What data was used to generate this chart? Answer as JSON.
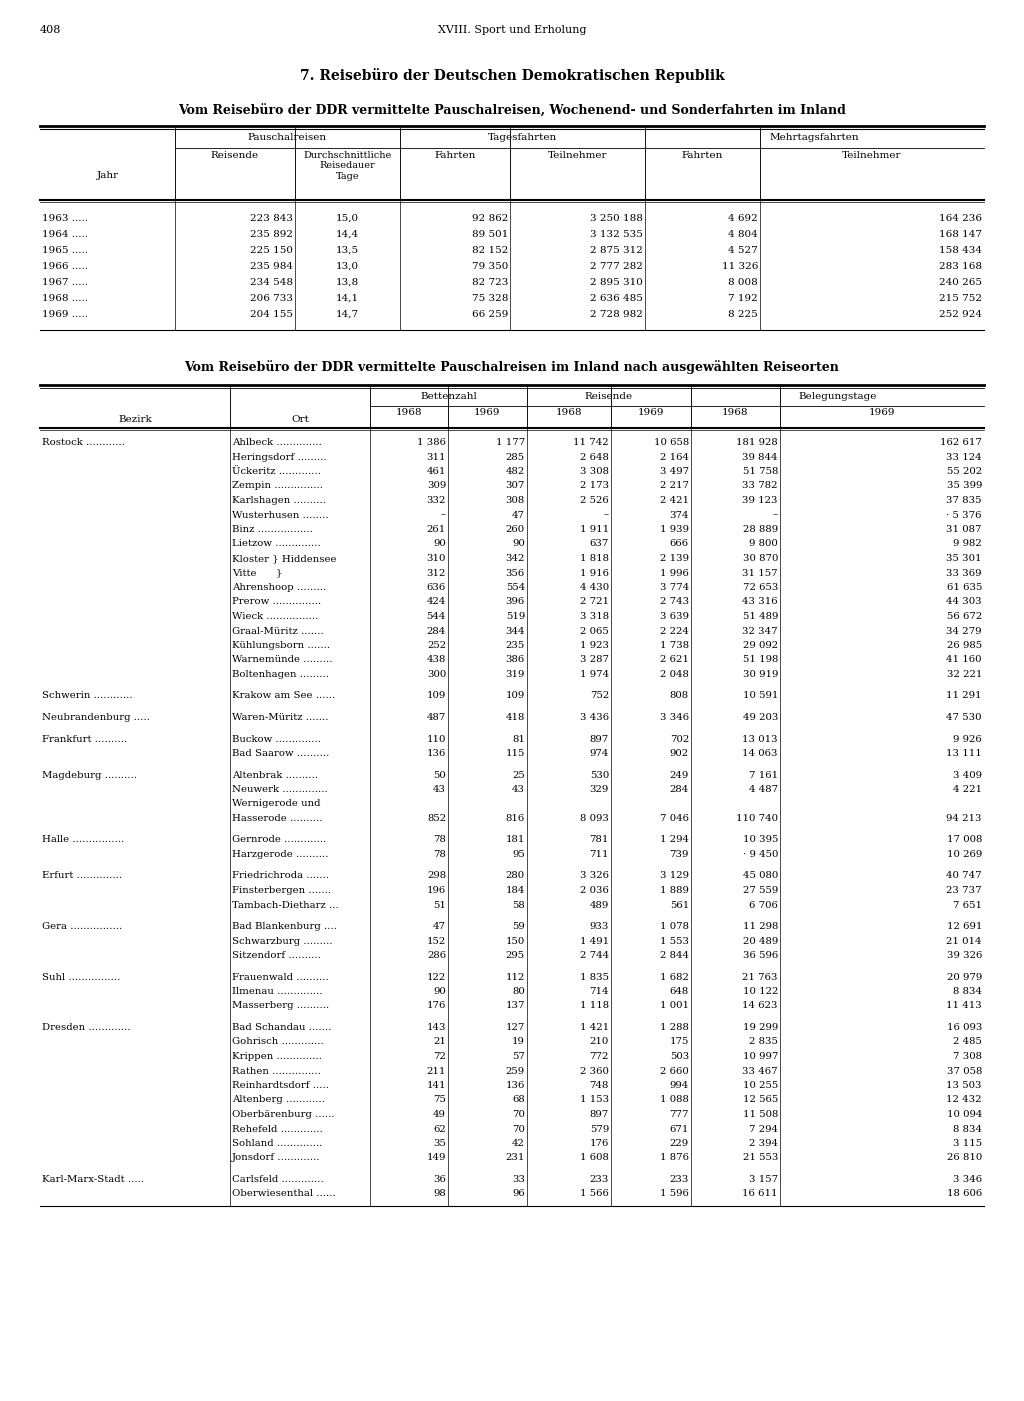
{
  "page_num": "408",
  "header": "XVIII. Sport und Erholung",
  "section_title": "7. Reisebüro der Deutschen Demokratischen Republik",
  "table1_subtitle": "Vom Reisebüro der DDR vermittelte Pauschalreisen, Wochenend- und Sonderfahrten im Inland",
  "table1_data": [
    [
      "1963 .....",
      "223 843",
      "15,0",
      "92 862",
      "3 250 188",
      "4 692",
      "164 236"
    ],
    [
      "1964 .....",
      "235 892",
      "14,4",
      "89 501",
      "3 132 535",
      "4 804",
      "168 147"
    ],
    [
      "1965 .....",
      "225 150",
      "13,5",
      "82 152",
      "2 875 312",
      "4 527",
      "158 434"
    ],
    [
      "1966 .....",
      "235 984",
      "13,0",
      "79 350",
      "2 777 282",
      "11 326",
      "283 168"
    ],
    [
      "1967 .....",
      "234 548",
      "13,8",
      "82 723",
      "2 895 310",
      "8 008",
      "240 265"
    ],
    [
      "1968 .....",
      "206 733",
      "14,1",
      "75 328",
      "2 636 485",
      "7 192",
      "215 752"
    ],
    [
      "1969 .....",
      "204 155",
      "14,7",
      "66 259",
      "2 728 982",
      "8 225",
      "252 924"
    ]
  ],
  "table2_subtitle": "Vom Reisebüro der DDR vermittelte Pauschalreisen im Inland nach ausgewählten Reiseorten",
  "table2_data": [
    [
      "Rostock ............",
      "Ahlbeck ..............",
      "1 386",
      "1 177",
      "11 742",
      "10 658",
      "181 928",
      "162 617"
    ],
    [
      "",
      "Heringsdorf .........",
      "311",
      "285",
      "2 648",
      "2 164",
      "39 844",
      "33 124"
    ],
    [
      "",
      "Ückeritz .............",
      "461",
      "482",
      "3 308",
      "3 497",
      "51 758",
      "55 202"
    ],
    [
      "",
      "Zempin ...............",
      "309",
      "307",
      "2 173",
      "2 217",
      "33 782",
      "35 399"
    ],
    [
      "",
      "Karlshagen ..........",
      "332",
      "308",
      "2 526",
      "2 421",
      "39 123",
      "37 835"
    ],
    [
      "",
      "Wusterhusen ........",
      "–",
      "47",
      "–",
      "374",
      "–",
      "· 5 376"
    ],
    [
      "",
      "Binz .................",
      "261",
      "260",
      "1 911",
      "1 939",
      "28 889",
      "31 087"
    ],
    [
      "",
      "Lietzow ..............",
      "90",
      "90",
      "637",
      "666",
      "9 800",
      "9 982"
    ],
    [
      "",
      "Kloster } Hiddensee",
      "310",
      "342",
      "1 818",
      "2 139",
      "30 870",
      "35 301"
    ],
    [
      "",
      "Vitte      }",
      "312",
      "356",
      "1 916",
      "1 996",
      "31 157",
      "33 369"
    ],
    [
      "",
      "Ahrenshoop .........",
      "636",
      "554",
      "4 430",
      "3 774",
      "72 653",
      "61 635"
    ],
    [
      "",
      "Prerow ...............",
      "424",
      "396",
      "2 721",
      "2 743",
      "43 316",
      "44 303"
    ],
    [
      "",
      "Wieck ................",
      "544",
      "519",
      "3 318",
      "3 639",
      "51 489",
      "56 672"
    ],
    [
      "",
      "Graal-Müritz .......",
      "284",
      "344",
      "2 065",
      "2 224",
      "32 347",
      "34 279"
    ],
    [
      "",
      "Kühlungsborn .......",
      "252",
      "235",
      "1 923",
      "1 738",
      "29 092",
      "26 985"
    ],
    [
      "",
      "Warnemünde .........",
      "438",
      "386",
      "3 287",
      "2 621",
      "51 198",
      "41 160"
    ],
    [
      "",
      "Boltenhagen .........",
      "300",
      "319",
      "1 974",
      "2 048",
      "30 919",
      "32 221"
    ],
    [
      "Schwerin ............",
      "Krakow am See ......",
      "109",
      "109",
      "752",
      "808",
      "10 591",
      "11 291"
    ],
    [
      "Neubrandenburg .....",
      "Waren-Müritz .......",
      "487",
      "418",
      "3 436",
      "3 346",
      "49 203",
      "47 530"
    ],
    [
      "Frankfurt ..........",
      "Buckow ..............",
      "110",
      "81",
      "897",
      "702",
      "13 013",
      "9 926"
    ],
    [
      "",
      "Bad Saarow ..........",
      "136",
      "115",
      "974",
      "902",
      "14 063",
      "13 111"
    ],
    [
      "Magdeburg ..........",
      "Altenbrak ..........",
      "50",
      "25",
      "530",
      "249",
      "7 161",
      "3 409"
    ],
    [
      "",
      "Neuwerk ..............",
      "43",
      "43",
      "329",
      "284",
      "4 487",
      "4 221"
    ],
    [
      "",
      "Wernigerode und",
      "",
      "",
      "",
      "",
      "",
      ""
    ],
    [
      "",
      "Hasserode ..........",
      "852",
      "816",
      "8 093",
      "7 046",
      "110 740",
      "94 213"
    ],
    [
      "Halle ................",
      "Gernrode .............",
      "78",
      "181",
      "781",
      "1 294",
      "10 395",
      "17 008"
    ],
    [
      "",
      "Harzgerode ..........",
      "78",
      "95",
      "711",
      "739",
      "· 9 450",
      "10 269"
    ],
    [
      "Erfurt ..............",
      "Friedrichroda .......",
      "298",
      "280",
      "3 326",
      "3 129",
      "45 080",
      "40 747"
    ],
    [
      "",
      "Finsterbergen .......",
      "196",
      "184",
      "2 036",
      "1 889",
      "27 559",
      "23 737"
    ],
    [
      "",
      "Tambach-Dietharz ...",
      "51",
      "58",
      "489",
      "561",
      "6 706",
      "7 651"
    ],
    [
      "Gera ................",
      "Bad Blankenburg ....",
      "47",
      "59",
      "933",
      "1 078",
      "11 298",
      "12 691"
    ],
    [
      "",
      "Schwarzburg .........",
      "152",
      "150",
      "1 491",
      "1 553",
      "20 489",
      "21 014"
    ],
    [
      "",
      "Sitzendorf ..........",
      "286",
      "295",
      "2 744",
      "2 844",
      "36 596",
      "39 326"
    ],
    [
      "Suhl ................",
      "Frauenwald ..........",
      "122",
      "112",
      "1 835",
      "1 682",
      "21 763",
      "20 979"
    ],
    [
      "",
      "Ilmenau ..............",
      "90",
      "80",
      "714",
      "648",
      "10 122",
      "8 834"
    ],
    [
      "",
      "Masserberg ..........",
      "176",
      "137",
      "1 118",
      "1 001",
      "14 623",
      "11 413"
    ],
    [
      "Dresden .............",
      "Bad Schandau .......",
      "143",
      "127",
      "1 421",
      "1 288",
      "19 299",
      "16 093"
    ],
    [
      "",
      "Gohrisch .............",
      "21",
      "19",
      "210",
      "175",
      "2 835",
      "2 485"
    ],
    [
      "",
      "Krippen ..............",
      "72",
      "57",
      "772",
      "503",
      "10 997",
      "7 308"
    ],
    [
      "",
      "Rathen ...............",
      "211",
      "259",
      "2 360",
      "2 660",
      "33 467",
      "37 058"
    ],
    [
      "",
      "Reinhardtsdorf .....",
      "141",
      "136",
      "748",
      "994",
      "10 255",
      "13 503"
    ],
    [
      "",
      "Altenberg ............",
      "75",
      "68",
      "1 153",
      "1 088",
      "12 565",
      "12 432"
    ],
    [
      "",
      "Oberbärenburg ......",
      "49",
      "70",
      "897",
      "777",
      "11 508",
      "10 094"
    ],
    [
      "",
      "Rehefeld .............",
      "62",
      "70",
      "579",
      "671",
      "7 294",
      "8 834"
    ],
    [
      "",
      "Sohland ..............",
      "35",
      "42",
      "176",
      "229",
      "2 394",
      "3 115"
    ],
    [
      "",
      "Jonsdorf .............",
      "149",
      "231",
      "1 608",
      "1 876",
      "21 553",
      "26 810"
    ],
    [
      "Karl-Marx-Stadt .....",
      "Carlsfeld .............",
      "36",
      "33",
      "233",
      "233",
      "3 157",
      "3 346"
    ],
    [
      "",
      "Oberwiesenthal ......",
      "98",
      "96",
      "1 566",
      "1 596",
      "16 611",
      "18 606"
    ]
  ]
}
